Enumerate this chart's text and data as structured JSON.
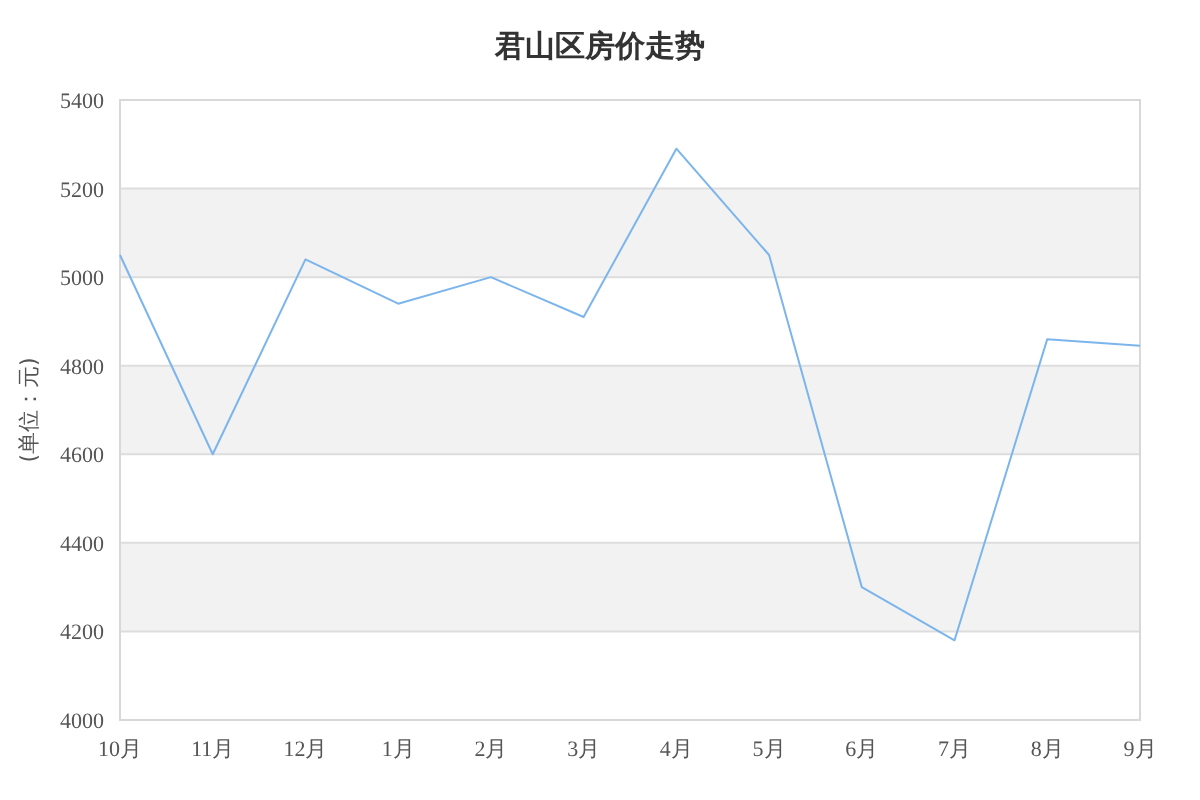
{
  "chart_data": {
    "type": "line",
    "title": "君山区房价走势",
    "ylabel": "(单位：元)",
    "categories": [
      "10月",
      "11月",
      "12月",
      "1月",
      "2月",
      "3月",
      "4月",
      "5月",
      "6月",
      "7月",
      "8月",
      "9月"
    ],
    "series": [
      {
        "color": "#7cb5ec",
        "values": [
          5050,
          4600,
          5040,
          4940,
          5000,
          4910,
          5290,
          5050,
          4300,
          4180,
          4860,
          4845
        ]
      }
    ],
    "ylim": [
      4000,
      5400
    ],
    "yticks": [
      4000,
      4200,
      4400,
      4600,
      4800,
      5000,
      5200,
      5400
    ],
    "grid": "y",
    "marker": "none",
    "line_style": "solid",
    "bands": [
      {
        "axis": "y",
        "from": 4200,
        "to": 4400,
        "color": "#f2f2f2"
      },
      {
        "axis": "y",
        "from": 4600,
        "to": 4800,
        "color": "#f2f2f2"
      },
      {
        "axis": "y",
        "from": 5000,
        "to": 5200,
        "color": "#f2f2f2"
      }
    ]
  }
}
